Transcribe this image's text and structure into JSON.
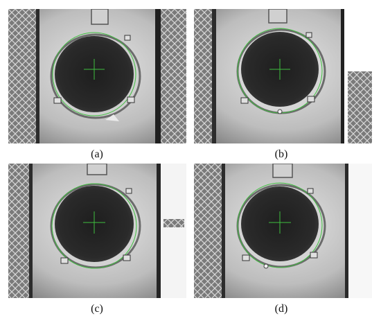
{
  "figure": {
    "panels": [
      {
        "id": "a",
        "caption": "(a)",
        "frame": "hatch-frame-a",
        "detection_color": "#3fbf3f"
      },
      {
        "id": "b",
        "caption": "(b)",
        "frame": "hatch-frame-b",
        "detection_color": "#3fbf3f"
      },
      {
        "id": "c",
        "caption": "(c)",
        "frame": "hatch-frame-c",
        "detection_color": "#3fbf3f"
      },
      {
        "id": "d",
        "caption": "(d)",
        "frame": "hatch-frame-d",
        "detection_color": "#3fbf3f"
      }
    ]
  }
}
